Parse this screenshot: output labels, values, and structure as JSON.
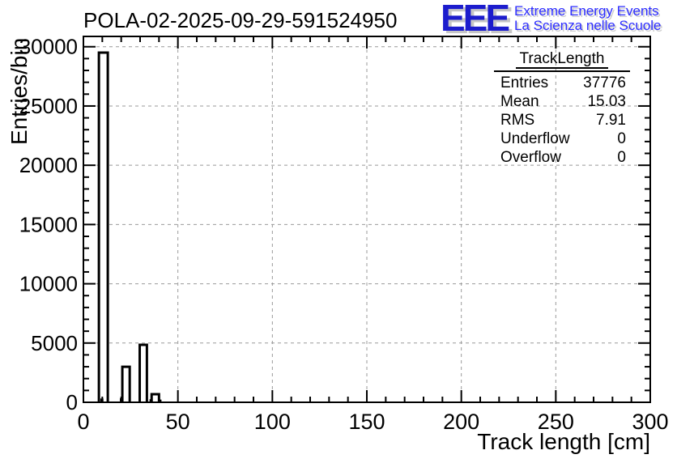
{
  "header": {
    "title": "POLA-02-2025-09-29-591524950",
    "logo": {
      "letters": "EEE",
      "line1": "Extreme Energy Events",
      "line2": "La Scienza nelle Scuole",
      "letters_color": "#1c1ccd",
      "text_color": "#2d2dff",
      "shadow_color": "#c6c6c6"
    }
  },
  "stats": {
    "title": "TrackLength",
    "rows": [
      {
        "label": "Entries",
        "value": "37776"
      },
      {
        "label": "Mean",
        "value": "15.03"
      },
      {
        "label": "RMS",
        "value": "7.91"
      },
      {
        "label": "Underflow",
        "value": "0"
      },
      {
        "label": "Overflow",
        "value": "0"
      }
    ]
  },
  "chart_data": {
    "type": "bar",
    "title": "POLA-02-2025-09-29-591524950",
    "xlabel": "Track length [cm]",
    "ylabel": "Entries/bin",
    "xlim": [
      0,
      300
    ],
    "ylim": [
      0,
      30870
    ],
    "x_major_ticks": [
      0,
      50,
      100,
      150,
      200,
      250,
      300
    ],
    "x_minor_step": 10,
    "y_major_ticks": [
      0,
      5000,
      10000,
      15000,
      20000,
      25000,
      30000
    ],
    "y_minor_step": 1000,
    "grid": "dashed-gray-at-major-ticks",
    "grid_color": "#999999",
    "bar_style": "white-fill-black-outline",
    "bars": [
      {
        "x_start": 8.2,
        "x_end": 12.9,
        "count": 29500
      },
      {
        "x_start": 20.6,
        "x_end": 24.5,
        "count": 3000
      },
      {
        "x_start": 29.8,
        "x_end": 33.6,
        "count": 4850
      },
      {
        "x_start": 36.1,
        "x_end": 40.0,
        "count": 680
      }
    ],
    "small_bars": [
      {
        "x_start": 9.0,
        "x_end": 10.6,
        "count": 320
      },
      {
        "x_start": 19.3,
        "x_end": 20.6,
        "count": 340
      },
      {
        "x_start": 35.0,
        "x_end": 36.1,
        "count": 260
      },
      {
        "x_start": 40.0,
        "x_end": 41.3,
        "count": 230
      }
    ]
  }
}
